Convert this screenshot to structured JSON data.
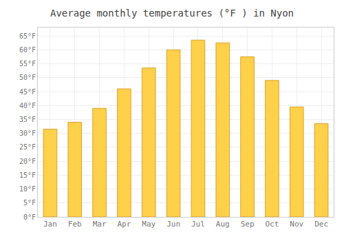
{
  "chart_data": {
    "type": "bar",
    "title": "Average monthly temperatures (°F ) in Nyon",
    "categories": [
      "Jan",
      "Feb",
      "Mar",
      "Apr",
      "May",
      "Jun",
      "Jul",
      "Aug",
      "Sep",
      "Oct",
      "Nov",
      "Dec"
    ],
    "values": [
      31.5,
      34,
      39,
      46,
      53.5,
      60,
      63.5,
      62.5,
      57.5,
      49,
      39.5,
      33.5
    ],
    "color": "#FFD04A",
    "ylim": [
      0,
      68
    ],
    "yticks": [
      {
        "value": 0,
        "label": "0°F"
      },
      {
        "value": 5,
        "label": "5°F"
      },
      {
        "value": 10,
        "label": "10°F"
      },
      {
        "value": 15,
        "label": "15°F"
      },
      {
        "value": 20,
        "label": "20°F"
      },
      {
        "value": 25,
        "label": "25°F"
      },
      {
        "value": 30,
        "label": "30°F"
      },
      {
        "value": 35,
        "label": "35°F"
      },
      {
        "value": 40,
        "label": "40°F"
      },
      {
        "value": 45,
        "label": "45°F"
      },
      {
        "value": 50,
        "label": "50°F"
      },
      {
        "value": 55,
        "label": "55°F"
      },
      {
        "value": 60,
        "label": "60°F"
      },
      {
        "value": 65,
        "label": "65°F"
      }
    ],
    "grid": true
  }
}
